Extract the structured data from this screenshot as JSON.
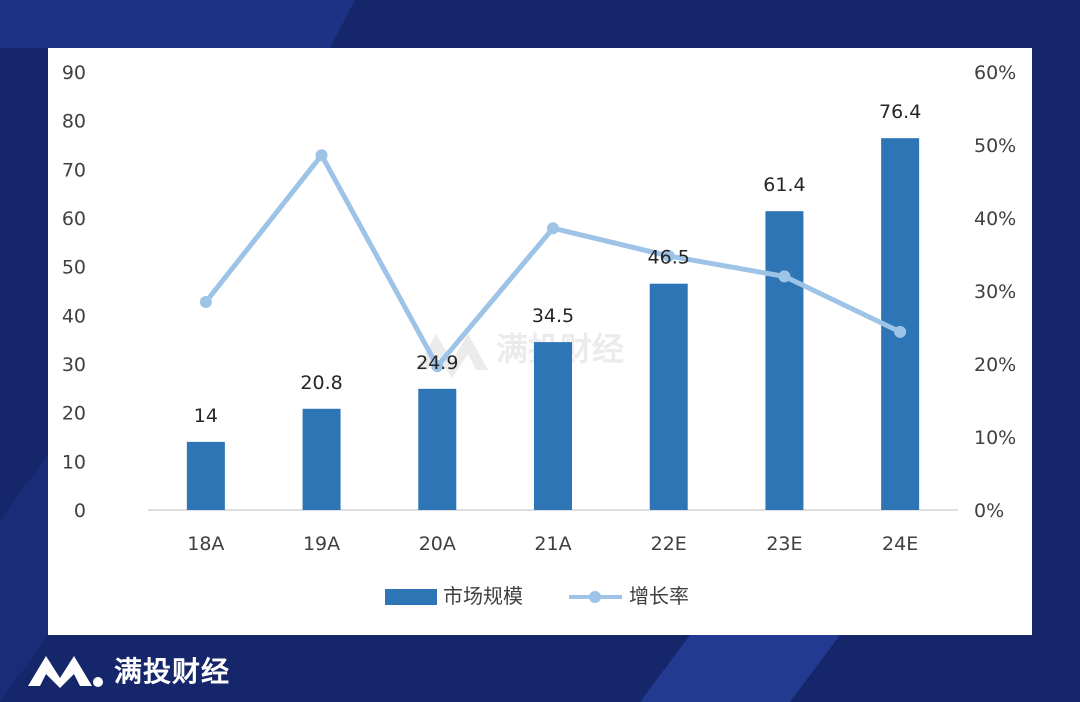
{
  "brand": {
    "name": "满投财经",
    "logo_icon": "mt-logo-icon"
  },
  "watermark": {
    "text": "满投财经"
  },
  "colors": {
    "background": "#16266b",
    "bar": "#2e75b6",
    "line": "#9dc3e6",
    "axis_text": "#404040",
    "axis_line": "#bfbfbf"
  },
  "chart_data": {
    "type": "bar",
    "categories": [
      "18A",
      "19A",
      "20A",
      "21A",
      "22E",
      "23E",
      "24E"
    ],
    "series": [
      {
        "name": "市场规模",
        "type": "bar",
        "axis": "left",
        "values": [
          14,
          20.8,
          24.9,
          34.5,
          46.5,
          61.4,
          76.4
        ]
      },
      {
        "name": "增长率",
        "type": "line",
        "axis": "right",
        "values": [
          28.5,
          48.6,
          19.7,
          38.6,
          34.8,
          32,
          24.4
        ]
      }
    ],
    "data_labels": [
      "14",
      "20.8",
      "24.9",
      "34.5",
      "46.5",
      "61.4",
      "76.4"
    ],
    "ylim": [
      0,
      90
    ],
    "yticks": [
      "0",
      "10",
      "20",
      "30",
      "40",
      "50",
      "60",
      "70",
      "80",
      "90"
    ],
    "y2lim": [
      0,
      60
    ],
    "y2ticks": [
      "0%",
      "10%",
      "20%",
      "30%",
      "40%",
      "50%",
      "60%"
    ],
    "legend": [
      "市场规模",
      "增长率"
    ],
    "legend_position": "bottom",
    "grid": false
  }
}
